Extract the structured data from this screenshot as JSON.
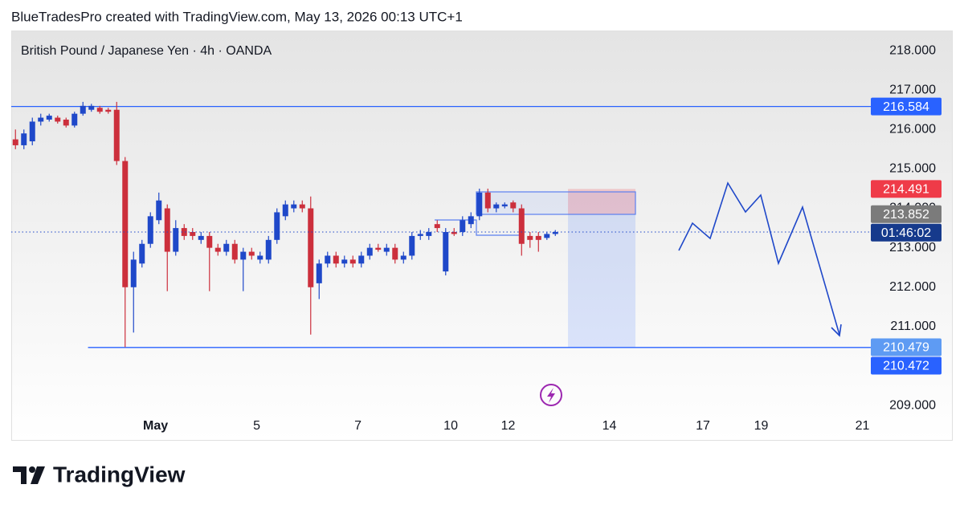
{
  "header": {
    "attribution": "BlueTradesPro created with TradingView.com, May 13, 2026 00:13 UTC+1"
  },
  "chart_data": {
    "type": "candlestick",
    "title": "British Pound / Japanese Yen · 4h · OANDA",
    "x": [
      0,
      1,
      2,
      3,
      4,
      5,
      6,
      7,
      8,
      9,
      10,
      11,
      12,
      13,
      14,
      15,
      16,
      17,
      18,
      19,
      20,
      21,
      22,
      23,
      24,
      25,
      26,
      27,
      28,
      29,
      30,
      31,
      32,
      33,
      34,
      35,
      36,
      37,
      38,
      39,
      40,
      41,
      42,
      43,
      44,
      45,
      46,
      47,
      48,
      49,
      50,
      51,
      52,
      53,
      54,
      55,
      56,
      57,
      58,
      59,
      60,
      61,
      62,
      63,
      64
    ],
    "open": [
      215.75,
      215.6,
      215.7,
      216.2,
      216.25,
      216.3,
      216.25,
      216.1,
      216.4,
      216.5,
      216.55,
      216.5,
      216.5,
      215.2,
      212.0,
      212.6,
      213.1,
      213.7,
      214.0,
      212.9,
      213.5,
      213.4,
      213.2,
      213.3,
      213.0,
      212.9,
      213.1,
      212.7,
      212.9,
      212.7,
      212.7,
      213.2,
      213.8,
      214.0,
      214.1,
      214.0,
      212.1,
      212.6,
      212.8,
      212.6,
      212.7,
      212.6,
      212.8,
      213.0,
      212.9,
      213.0,
      212.7,
      212.8,
      213.3,
      213.3,
      213.6,
      212.4,
      213.4,
      213.4,
      213.6,
      213.8,
      214.4,
      214.0,
      214.05,
      214.15,
      214.0,
      213.3,
      213.3,
      213.25,
      213.35
    ],
    "high": [
      216.0,
      216.0,
      216.3,
      216.4,
      216.4,
      216.35,
      216.3,
      216.45,
      216.7,
      216.65,
      216.6,
      216.55,
      216.7,
      215.3,
      212.9,
      213.2,
      213.9,
      214.4,
      214.1,
      213.7,
      213.6,
      213.5,
      213.4,
      213.4,
      213.1,
      213.2,
      213.2,
      213.0,
      213.0,
      212.9,
      213.3,
      214.0,
      214.2,
      214.2,
      214.2,
      214.3,
      212.7,
      212.9,
      212.9,
      212.8,
      212.8,
      212.9,
      213.1,
      213.1,
      213.1,
      213.1,
      212.9,
      213.4,
      213.45,
      213.5,
      213.7,
      213.5,
      213.5,
      213.8,
      213.9,
      214.5,
      214.5,
      214.15,
      214.15,
      214.2,
      214.1,
      213.4,
      213.4,
      213.4,
      213.45
    ],
    "low": [
      215.5,
      215.5,
      215.6,
      216.1,
      216.2,
      216.15,
      216.05,
      216.05,
      216.35,
      216.45,
      216.4,
      216.4,
      215.1,
      210.48,
      210.85,
      212.5,
      213.0,
      213.6,
      211.9,
      212.8,
      213.2,
      213.2,
      213.1,
      211.9,
      212.8,
      212.8,
      212.6,
      211.9,
      212.7,
      212.6,
      212.6,
      213.1,
      213.7,
      213.9,
      213.9,
      210.8,
      211.7,
      212.5,
      212.5,
      212.5,
      212.5,
      212.5,
      212.7,
      212.9,
      212.8,
      212.6,
      212.6,
      212.7,
      213.2,
      213.2,
      213.4,
      212.3,
      213.3,
      213.3,
      213.5,
      213.7,
      213.9,
      213.9,
      214.0,
      213.9,
      212.8,
      213.0,
      212.9,
      213.2,
      213.3
    ],
    "close": [
      215.6,
      215.9,
      216.2,
      216.3,
      216.35,
      216.2,
      216.1,
      216.4,
      216.6,
      216.6,
      216.45,
      216.45,
      215.2,
      212.0,
      212.7,
      213.1,
      213.8,
      214.2,
      212.9,
      213.5,
      213.3,
      213.3,
      213.3,
      213.0,
      212.9,
      213.1,
      212.7,
      212.9,
      212.8,
      212.8,
      213.2,
      213.9,
      214.1,
      214.1,
      214.0,
      212.0,
      212.6,
      212.8,
      212.6,
      212.7,
      212.6,
      212.8,
      213.0,
      212.95,
      213.0,
      212.7,
      212.8,
      213.3,
      213.35,
      213.4,
      213.5,
      213.4,
      213.35,
      213.7,
      213.8,
      214.4,
      214.0,
      214.1,
      214.1,
      214.0,
      213.1,
      213.2,
      213.2,
      213.35,
      213.4
    ],
    "up_color": "#1f48c9",
    "down_color": "#cc2f3c",
    "xlim": [
      -0.5,
      101.4
    ],
    "xticks": [
      {
        "value": 16.6,
        "label": "May"
      },
      {
        "value": 28.6,
        "label": "5"
      },
      {
        "value": 40.6,
        "label": "7"
      },
      {
        "value": 51.6,
        "label": "10"
      },
      {
        "value": 58.4,
        "label": "12"
      },
      {
        "value": 70.4,
        "label": "14"
      },
      {
        "value": 81.5,
        "label": "17"
      },
      {
        "value": 88.4,
        "label": "19"
      },
      {
        "value": 100.4,
        "label": "21"
      }
    ],
    "ylim": [
      208.86,
      218.51
    ],
    "yticks": [
      {
        "value": 209,
        "label": "209.000"
      },
      {
        "value": 210,
        "label": "210.000"
      },
      {
        "value": 211,
        "label": "211.000"
      },
      {
        "value": 212,
        "label": "212.000"
      },
      {
        "value": 213,
        "label": "213.000"
      },
      {
        "value": 214,
        "label": "214.000"
      },
      {
        "value": 215,
        "label": "215.000"
      },
      {
        "value": 216,
        "label": "216.000"
      },
      {
        "value": 217,
        "label": "217.000"
      },
      {
        "value": 218,
        "label": "218.000"
      }
    ],
    "levels": [
      {
        "value": 216.584,
        "color": "#2962ff",
        "x_from": -0.5
      },
      {
        "value": 210.472,
        "color": "#2962ff",
        "x_from": 8.6
      }
    ],
    "position": {
      "entry": 213.852,
      "stop": 214.491,
      "target": 210.479,
      "x_start": 65.5,
      "x_end": 73.5
    },
    "countdown": "01:46:02"
  },
  "footer": {
    "brand": "TradingView"
  }
}
